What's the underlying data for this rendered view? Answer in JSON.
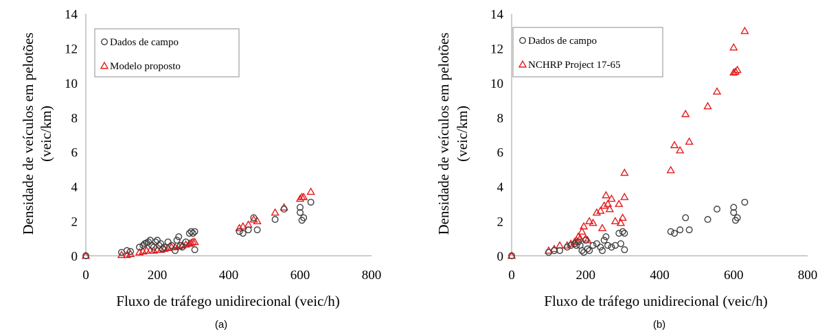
{
  "chart_data": [
    {
      "type": "scatter",
      "panel_label": "(a)",
      "xlabel": "Fluxo de tráfego unidirecional (veic/h)",
      "ylabel_lines": [
        "Densidade de veículos em pelotões",
        "(veic/km)"
      ],
      "xlim": [
        0,
        800
      ],
      "ylim": [
        0,
        14
      ],
      "xticks": [
        0,
        200,
        400,
        600,
        800
      ],
      "yticks": [
        0,
        2,
        4,
        6,
        8,
        10,
        12,
        14
      ],
      "grid": false,
      "legend": "top-left",
      "series": [
        {
          "name": "Dados de campo",
          "marker": "circle",
          "color": "#404040",
          "points": [
            [
              0,
              0
            ],
            [
              100,
              0.2
            ],
            [
              115,
              0.3
            ],
            [
              125,
              0.25
            ],
            [
              150,
              0.5
            ],
            [
              160,
              0.6
            ],
            [
              165,
              0.7
            ],
            [
              170,
              0.75
            ],
            [
              175,
              0.8
            ],
            [
              180,
              0.9
            ],
            [
              185,
              0.6
            ],
            [
              190,
              0.5
            ],
            [
              195,
              0.8
            ],
            [
              200,
              0.9
            ],
            [
              205,
              0.6
            ],
            [
              210,
              0.7
            ],
            [
              215,
              0.4
            ],
            [
              220,
              0.5
            ],
            [
              230,
              0.8
            ],
            [
              240,
              0.6
            ],
            [
              250,
              0.3
            ],
            [
              255,
              0.9
            ],
            [
              260,
              1.1
            ],
            [
              265,
              0.6
            ],
            [
              270,
              0.5
            ],
            [
              280,
              0.8
            ],
            [
              290,
              1.3
            ],
            [
              295,
              1.4
            ],
            [
              300,
              1.3
            ],
            [
              305,
              1.4
            ],
            [
              305,
              0.35
            ],
            [
              430,
              1.4
            ],
            [
              440,
              1.3
            ],
            [
              455,
              1.5
            ],
            [
              470,
              2.2
            ],
            [
              480,
              1.5
            ],
            [
              530,
              2.1
            ],
            [
              555,
              2.7
            ],
            [
              600,
              2.5
            ],
            [
              600,
              2.8
            ],
            [
              605,
              2.05
            ],
            [
              610,
              2.2
            ],
            [
              630,
              3.1
            ]
          ]
        },
        {
          "name": "Modelo proposto",
          "marker": "triangle",
          "color": "#e41a1c",
          "points": [
            [
              0,
              0
            ],
            [
              100,
              0.05
            ],
            [
              115,
              0.05
            ],
            [
              125,
              0.1
            ],
            [
              150,
              0.2
            ],
            [
              160,
              0.25
            ],
            [
              170,
              0.3
            ],
            [
              180,
              0.3
            ],
            [
              190,
              0.3
            ],
            [
              200,
              0.35
            ],
            [
              210,
              0.35
            ],
            [
              220,
              0.4
            ],
            [
              230,
              0.45
            ],
            [
              240,
              0.5
            ],
            [
              250,
              0.5
            ],
            [
              260,
              0.55
            ],
            [
              270,
              0.6
            ],
            [
              280,
              0.65
            ],
            [
              290,
              0.7
            ],
            [
              295,
              0.75
            ],
            [
              300,
              0.8
            ],
            [
              305,
              0.8
            ],
            [
              430,
              1.6
            ],
            [
              440,
              1.7
            ],
            [
              455,
              1.8
            ],
            [
              470,
              2.1
            ],
            [
              480,
              2.0
            ],
            [
              530,
              2.5
            ],
            [
              555,
              2.8
            ],
            [
              600,
              3.3
            ],
            [
              605,
              3.4
            ],
            [
              610,
              3.4
            ],
            [
              630,
              3.7
            ]
          ]
        }
      ]
    },
    {
      "type": "scatter",
      "panel_label": "(b)",
      "xlabel": "Fluxo de tráfego unidirecional (veic/h)",
      "ylabel_lines": [
        "Densidade de veículos em pelotões",
        "(veic/km)"
      ],
      "xlim": [
        0,
        800
      ],
      "ylim": [
        0,
        14
      ],
      "xticks": [
        0,
        200,
        400,
        600,
        800
      ],
      "yticks": [
        0,
        2,
        4,
        6,
        8,
        10,
        12,
        14
      ],
      "grid": false,
      "legend": "top-left",
      "series": [
        {
          "name": "Dados de campo",
          "marker": "circle",
          "color": "#404040",
          "points": [
            [
              0,
              0
            ],
            [
              100,
              0.2
            ],
            [
              115,
              0.3
            ],
            [
              130,
              0.3
            ],
            [
              150,
              0.5
            ],
            [
              160,
              0.6
            ],
            [
              170,
              0.7
            ],
            [
              175,
              0.6
            ],
            [
              180,
              0.8
            ],
            [
              185,
              0.6
            ],
            [
              190,
              0.3
            ],
            [
              195,
              0.2
            ],
            [
              200,
              0.9
            ],
            [
              205,
              0.4
            ],
            [
              210,
              0.3
            ],
            [
              220,
              0.6
            ],
            [
              230,
              0.7
            ],
            [
              240,
              0.5
            ],
            [
              245,
              0.3
            ],
            [
              250,
              0.9
            ],
            [
              255,
              1.1
            ],
            [
              260,
              0.6
            ],
            [
              270,
              0.5
            ],
            [
              280,
              0.6
            ],
            [
              290,
              1.3
            ],
            [
              295,
              0.7
            ],
            [
              300,
              1.4
            ],
            [
              305,
              1.3
            ],
            [
              305,
              0.35
            ],
            [
              430,
              1.4
            ],
            [
              440,
              1.3
            ],
            [
              455,
              1.5
            ],
            [
              470,
              2.2
            ],
            [
              480,
              1.5
            ],
            [
              530,
              2.1
            ],
            [
              555,
              2.7
            ],
            [
              600,
              2.5
            ],
            [
              600,
              2.8
            ],
            [
              605,
              2.05
            ],
            [
              610,
              2.2
            ],
            [
              630,
              3.1
            ]
          ]
        },
        {
          "name": "NCHRP Project 17-65",
          "marker": "triangle",
          "color": "#e41a1c",
          "points": [
            [
              0,
              0
            ],
            [
              100,
              0.3
            ],
            [
              115,
              0.4
            ],
            [
              130,
              0.6
            ],
            [
              150,
              0.6
            ],
            [
              160,
              0.7
            ],
            [
              170,
              0.8
            ],
            [
              175,
              0.9
            ],
            [
              180,
              1.1
            ],
            [
              185,
              1.0
            ],
            [
              190,
              1.4
            ],
            [
              195,
              1.7
            ],
            [
              200,
              1.0
            ],
            [
              205,
              0.9
            ],
            [
              210,
              2.0
            ],
            [
              220,
              1.9
            ],
            [
              230,
              2.5
            ],
            [
              240,
              2.6
            ],
            [
              245,
              1.6
            ],
            [
              250,
              2.9
            ],
            [
              255,
              3.5
            ],
            [
              260,
              3.0
            ],
            [
              265,
              2.7
            ],
            [
              270,
              3.3
            ],
            [
              280,
              2.0
            ],
            [
              290,
              3.0
            ],
            [
              295,
              1.9
            ],
            [
              300,
              2.2
            ],
            [
              305,
              3.4
            ],
            [
              305,
              4.8
            ],
            [
              430,
              4.95
            ],
            [
              440,
              6.4
            ],
            [
              455,
              6.1
            ],
            [
              470,
              8.2
            ],
            [
              480,
              6.6
            ],
            [
              530,
              8.65
            ],
            [
              555,
              9.5
            ],
            [
              600,
              12.05
            ],
            [
              600,
              10.6
            ],
            [
              605,
              10.65
            ],
            [
              610,
              10.75
            ],
            [
              630,
              13.0
            ]
          ]
        }
      ]
    }
  ]
}
